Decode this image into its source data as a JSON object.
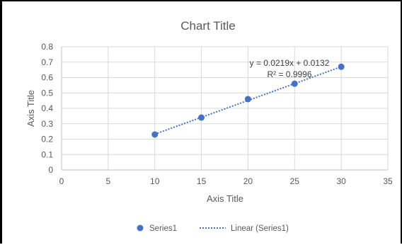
{
  "chart_data": {
    "type": "scatter",
    "title": "Chart Title",
    "xlabel": "Axis Title",
    "ylabel": "Axis Title",
    "xlim": [
      0,
      35
    ],
    "ylim": [
      0,
      0.8
    ],
    "x_ticks": [
      "0",
      "5",
      "10",
      "15",
      "20",
      "25",
      "30",
      "35"
    ],
    "y_ticks": [
      "0",
      "0.1",
      "0.2",
      "0.3",
      "0.4",
      "0.5",
      "0.6",
      "0.7",
      "0.8"
    ],
    "grid": true,
    "legend": "bottom",
    "series": [
      {
        "name": "Series1",
        "color": "#4472C4",
        "x": [
          10,
          15,
          20,
          25,
          30
        ],
        "y": [
          0.23,
          0.34,
          0.46,
          0.56,
          0.67
        ]
      }
    ],
    "trendline": {
      "name": "Linear (Series1)",
      "type": "linear",
      "slope": 0.0219,
      "intercept": 0.0132,
      "x_range": [
        10,
        30
      ],
      "color": "#4472C4",
      "equation_label": "y = 0.0219x + 0.0132",
      "r2_label": "R² = 0.9996"
    }
  }
}
